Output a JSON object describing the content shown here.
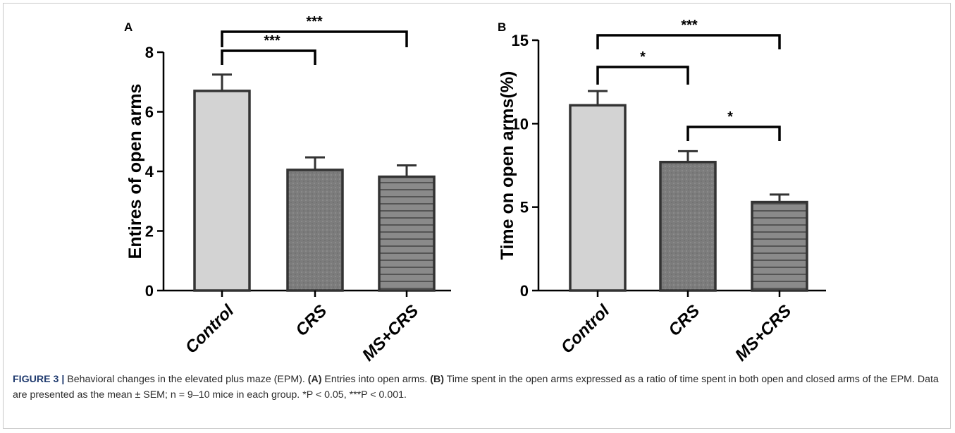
{
  "chart_data": [
    {
      "panel": "A",
      "type": "bar",
      "categories": [
        "Control",
        "CRS",
        "MS+CRS"
      ],
      "values": [
        6.7,
        4.05,
        3.82
      ],
      "errors": [
        0.55,
        0.42,
        0.38
      ],
      "ylabel": "Entires of open arms",
      "ylim": [
        0,
        8
      ],
      "yticks": [
        0,
        2,
        4,
        6,
        8
      ],
      "patterns": [
        "solid",
        "dots",
        "stripes"
      ],
      "fills": [
        "#d3d3d3",
        "#7c7c7c",
        "#858585"
      ],
      "significance": [
        {
          "from": 0,
          "to": 1,
          "label": "***"
        },
        {
          "from": 0,
          "to": 2,
          "label": "***"
        }
      ]
    },
    {
      "panel": "B",
      "type": "bar",
      "categories": [
        "Control",
        "CRS",
        "MS+CRS"
      ],
      "values": [
        11.1,
        7.7,
        5.3
      ],
      "errors": [
        0.85,
        0.65,
        0.45
      ],
      "ylabel": "Time on open arms(%)",
      "ylim": [
        0,
        15
      ],
      "yticks": [
        0,
        5,
        10,
        15
      ],
      "patterns": [
        "solid",
        "dots",
        "stripes"
      ],
      "fills": [
        "#d3d3d3",
        "#7c7c7c",
        "#858585"
      ],
      "significance": [
        {
          "from": 0,
          "to": 1,
          "label": "*"
        },
        {
          "from": 0,
          "to": 2,
          "label": "***"
        },
        {
          "from": 1,
          "to": 2,
          "label": "*"
        }
      ]
    }
  ],
  "caption": {
    "label": "FIGURE 3 |",
    "intro": " Behavioral changes in the elevated plus maze (EPM). ",
    "a_tag": "(A)",
    "a_text": " Entries into open arms. ",
    "b_tag": "(B)",
    "b_text": " Time spent in the open arms expressed as a ratio of time spent in both open and closed arms of the EPM. Data are presented as the mean ± SEM; n = 9–10 mice in each group. *P < 0.05, ***P < 0.001."
  },
  "colors": {
    "bar_stroke": "#333333",
    "axis": "#000000",
    "caption_label": "#1f3a6e"
  }
}
